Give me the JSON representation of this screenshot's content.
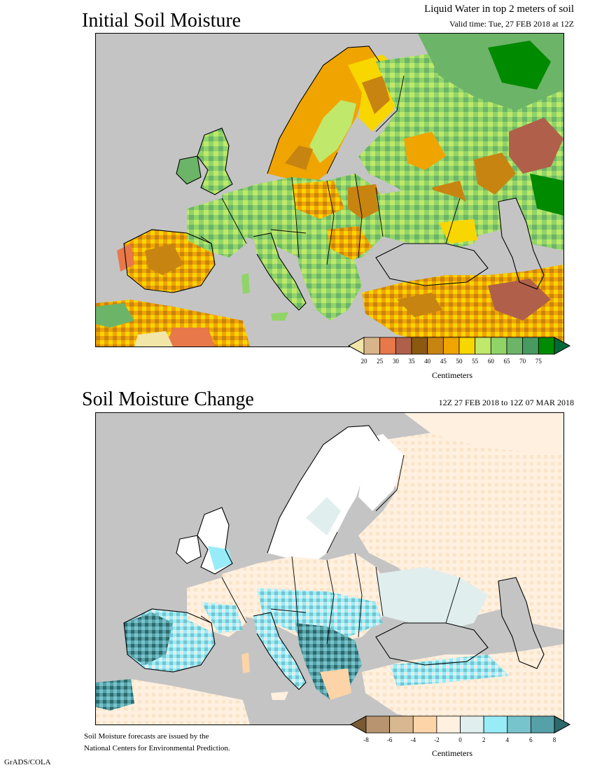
{
  "top_panel": {
    "title": "Initial Soil Moisture",
    "subtitle": "Liquid Water in top 2 meters of soil",
    "valid_time": "Valid time: Tue, 27 FEB 2018 at 12Z",
    "colorbar": {
      "labels": [
        "20",
        "25",
        "30",
        "35",
        "40",
        "45",
        "50",
        "55",
        "60",
        "65",
        "70",
        "75"
      ],
      "colors": [
        "#f1e6a8",
        "#d8b48a",
        "#e8784a",
        "#b0604a",
        "#8b5a10",
        "#c88410",
        "#f0a400",
        "#f8d600",
        "#c0e86a",
        "#90d468",
        "#6cb468",
        "#489a60",
        "#008a00",
        "#006a36"
      ],
      "unit": "Centimeters"
    }
  },
  "bottom_panel": {
    "title": "Soil Moisture Change",
    "period": "12Z 27 FEB 2018 to 12Z 07 MAR 2018",
    "colorbar": {
      "labels": [
        "-8",
        "-6",
        "-4",
        "-2",
        "0",
        "2",
        "4",
        "6",
        "8"
      ],
      "colors": [
        "#7a5a32",
        "#b89470",
        "#d8b890",
        "#fcd4a8",
        "#fff0e0",
        "#e0eeee",
        "#98ecf8",
        "#78c4cc",
        "#56a0a8",
        "#2c6a6c"
      ],
      "unit": "Centimeters"
    }
  },
  "footnote": {
    "line1": "Soil Moisture forecasts are issued by the",
    "line2": "National Centers for Environmental Prediction."
  },
  "credit": "GrADS/COLA"
}
